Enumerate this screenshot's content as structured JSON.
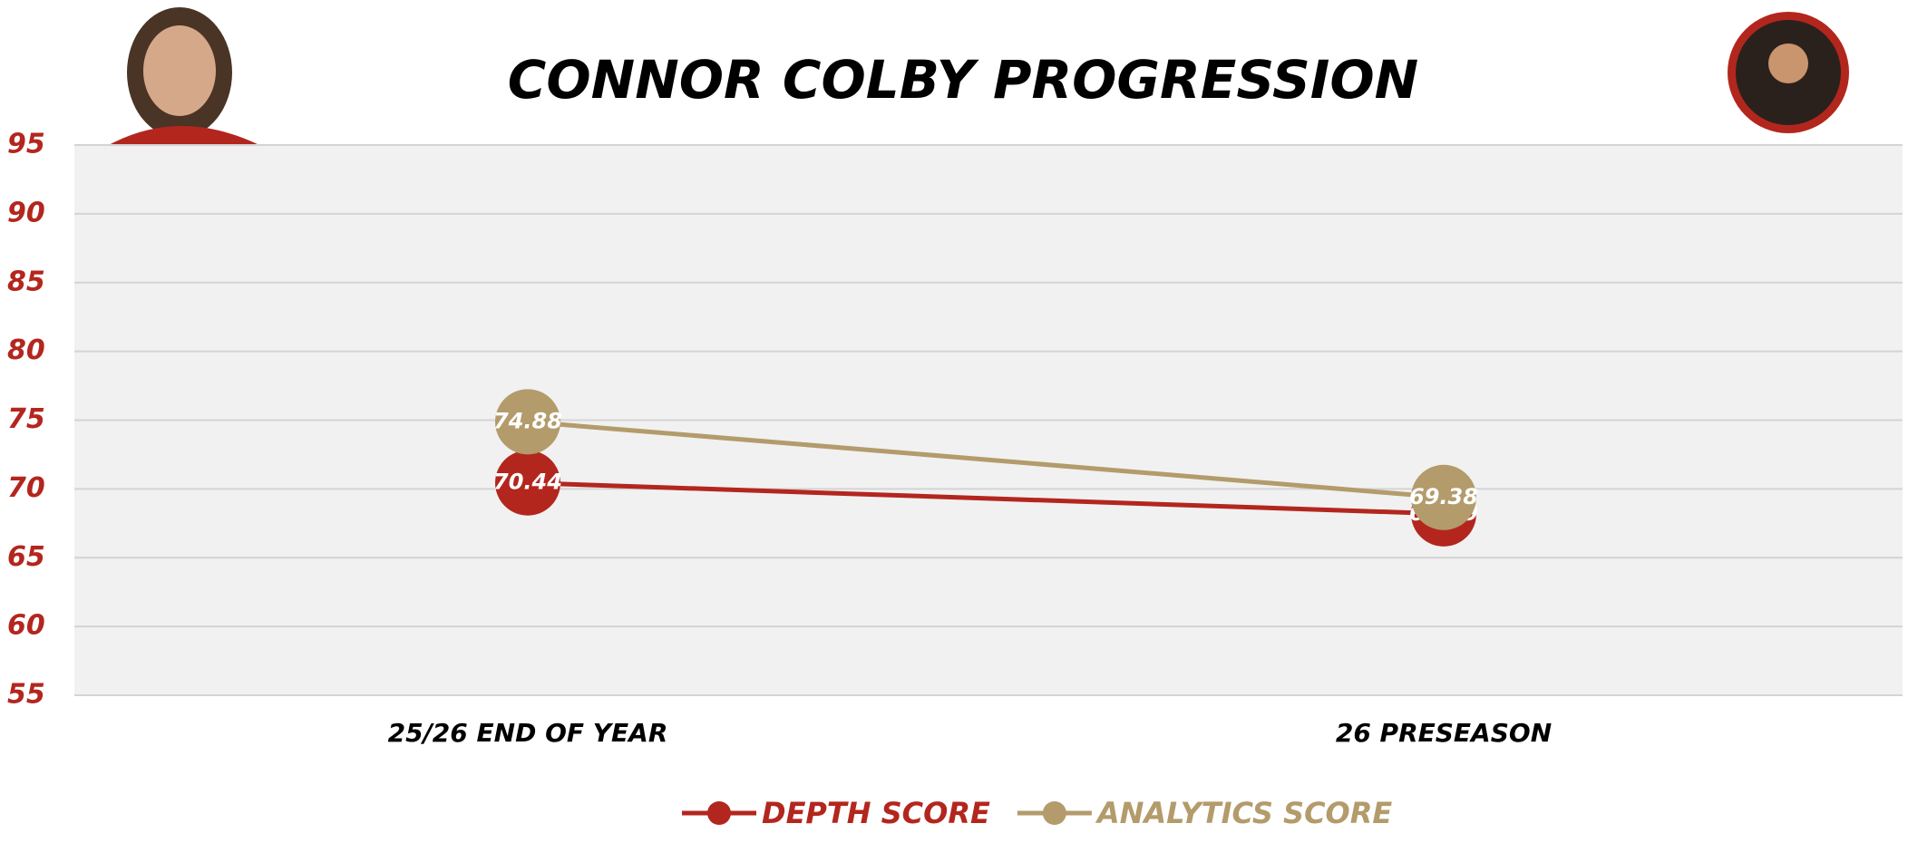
{
  "chart_data": {
    "type": "line",
    "title": "CONNOR COLBY PROGRESSION",
    "categories": [
      "25/26 END OF YEAR",
      "26 PRESEASON"
    ],
    "series": [
      {
        "name": "DEPTH SCORE",
        "color": "#b3261e",
        "values": [
          70.44,
          68.19
        ]
      },
      {
        "name": "ANALYTICS SCORE",
        "color": "#b39b6b",
        "values": [
          74.88,
          69.38
        ]
      }
    ],
    "ylim": [
      55,
      95
    ],
    "yticks": [
      55,
      60,
      65,
      70,
      75,
      80,
      85,
      90,
      95
    ],
    "grid": true
  }
}
